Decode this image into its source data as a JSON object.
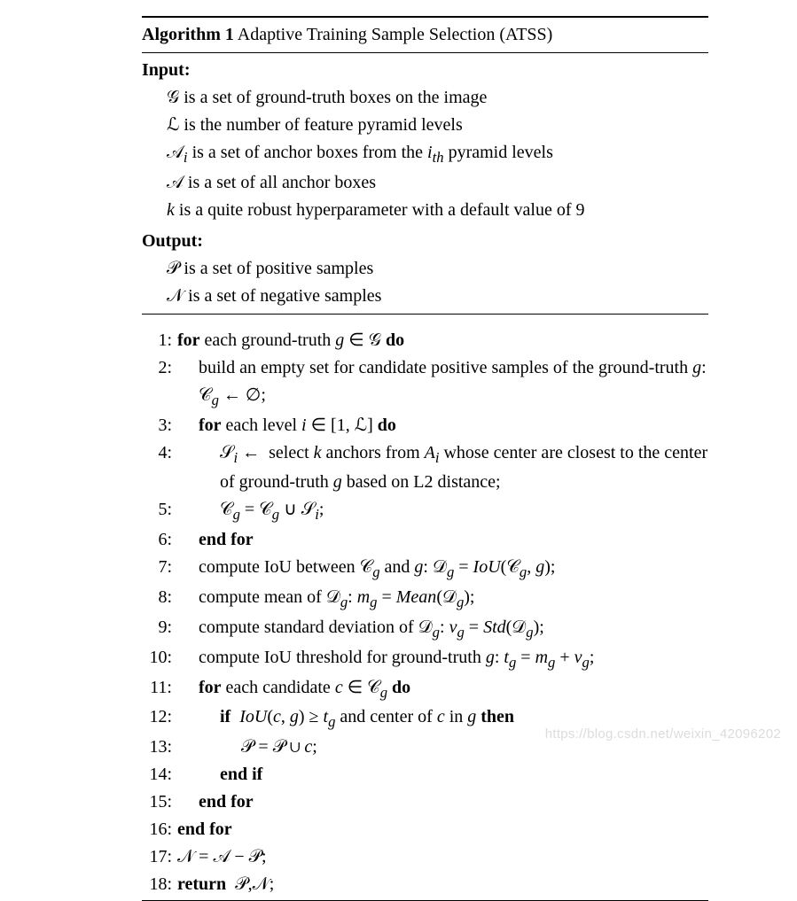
{
  "algorithm": {
    "number": "Algorithm 1",
    "title": "Adaptive Training Sample Selection (ATSS)",
    "input_label": "Input:",
    "output_label": "Output:",
    "inputs": [
      "𝒢 is a set of ground-truth boxes on the image",
      "ℒ is the number of feature pyramid levels",
      "𝒜ᵢ is a set of anchor boxes from the iₜₕ pyramid levels",
      "𝒜 is a set of all anchor boxes",
      "k is a quite robust hyperparameter with a default value of 9"
    ],
    "outputs": [
      "𝒫 is a set of positive samples",
      "𝒩 is a set of negative samples"
    ],
    "steps": [
      {
        "n": "1:",
        "indent": 1,
        "html": "<b>for</b> each ground-truth <span class='it'>g</span> ∈ 𝒢 <b>do</b>"
      },
      {
        "n": "2:",
        "indent": 2,
        "html": "<span class='justify'>build an empty set for candidate positive samples of the ground-truth <span class='it'>g</span>: 𝒞<sub><span class='it'>g</span></sub> ← ∅;</span>"
      },
      {
        "n": "3:",
        "indent": 2,
        "html": "<b>for</b> each level <span class='it'>i</span> ∈ [1, ℒ] <b>do</b>"
      },
      {
        "n": "4:",
        "indent": 3,
        "html": "𝒮<sub><span class='it'>i</span></sub> ←&nbsp; select <span class='it'>k</span> anchors from <span class='it'>A<sub>i</sub></span> whose center are closest to the center of ground-truth <span class='it'>g</span> based on L2 distance;"
      },
      {
        "n": "5:",
        "indent": 3,
        "html": "𝒞<sub><span class='it'>g</span></sub> = 𝒞<sub><span class='it'>g</span></sub> ∪ 𝒮<sub><span class='it'>i</span></sub>;"
      },
      {
        "n": "6:",
        "indent": 2,
        "html": "<b>end for</b>"
      },
      {
        "n": "7:",
        "indent": 2,
        "html": "compute IoU between 𝒞<sub><span class='it'>g</span></sub> and <span class='it'>g</span>: 𝒟<sub><span class='it'>g</span></sub> = <span class='it'>IoU</span>(𝒞<sub><span class='it'>g</span></sub>, <span class='it'>g</span>);"
      },
      {
        "n": "8:",
        "indent": 2,
        "html": "compute mean of 𝒟<sub><span class='it'>g</span></sub>: <span class='it'>m<sub>g</sub></span> = <span class='it'>Mean</span>(𝒟<sub><span class='it'>g</span></sub>);"
      },
      {
        "n": "9:",
        "indent": 2,
        "html": "compute standard deviation of 𝒟<sub><span class='it'>g</span></sub>: <span class='it'>v<sub>g</sub></span> = <span class='it'>Std</span>(𝒟<sub><span class='it'>g</span></sub>);"
      },
      {
        "n": "10:",
        "indent": 2,
        "html": "compute IoU threshold for ground-truth <span class='it'>g</span>: <span class='it'>t<sub>g</sub></span> = <span class='it'>m<sub>g</sub></span> + <span class='it'>v<sub>g</sub></span>;"
      },
      {
        "n": "11:",
        "indent": 2,
        "html": "<b>for</b> each candidate <span class='it'>c</span> ∈ 𝒞<sub><span class='it'>g</span></sub> <b>do</b>"
      },
      {
        "n": "12:",
        "indent": 3,
        "html": "<b>if</b>&nbsp; <span class='it'>IoU</span>(<span class='it'>c</span>, <span class='it'>g</span>) ≥ <span class='it'>t<sub>g</sub></span> and center of <span class='it'>c</span> in <span class='it'>g</span> <b>then</b>"
      },
      {
        "n": "13:",
        "indent": 4,
        "html": "𝒫 = 𝒫 ∪ <span class='it'>c</span>;"
      },
      {
        "n": "14:",
        "indent": 3,
        "html": "<b>end if</b>"
      },
      {
        "n": "15:",
        "indent": 2,
        "html": "<b>end for</b>"
      },
      {
        "n": "16:",
        "indent": 1,
        "html": "<b>end for</b>"
      },
      {
        "n": "17:",
        "indent": 1,
        "html": "𝒩 = 𝒜 − 𝒫;"
      },
      {
        "n": "18:",
        "indent": 1,
        "html": "<b>return</b>&nbsp; 𝒫,𝒩;"
      }
    ]
  },
  "watermark": "https://blog.csdn.net/weixin_42096202",
  "style": {
    "font_family": "Times New Roman",
    "font_size_pt": 15,
    "text_color": "#000000",
    "background_color": "#ffffff",
    "rule_color": "#000000",
    "watermark_color": "#dcdcdc"
  }
}
